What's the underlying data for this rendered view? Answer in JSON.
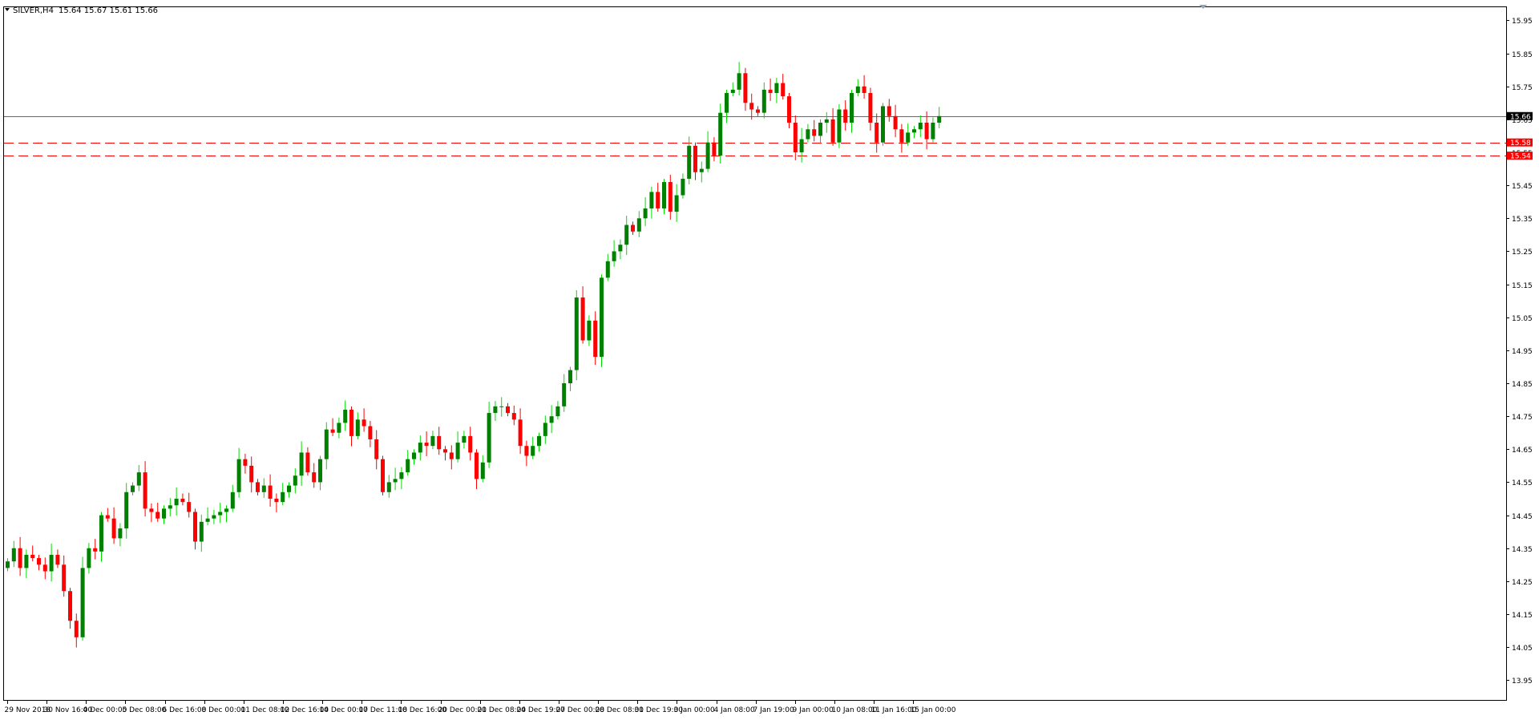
{
  "header": {
    "symbol": "SILVER,H4",
    "ohlc": "15.64 15.67 15.61 15.66"
  },
  "colors": {
    "bull": "#008000",
    "bull_wick": "#00dd00",
    "bear": "#ff0000",
    "level_line": "#ff0000",
    "current_line": "#5a6b80",
    "axis": "#000000",
    "label_text": "#ffffff"
  },
  "chart_data": {
    "type": "candlestick",
    "symbol": "SILVER",
    "timeframe": "H4",
    "ylim": [
      13.89,
      15.99
    ],
    "y_ticks": [
      13.95,
      14.05,
      14.15,
      14.25,
      14.35,
      14.45,
      14.55,
      14.65,
      14.75,
      14.85,
      14.95,
      15.05,
      15.15,
      15.25,
      15.35,
      15.45,
      15.55,
      15.65,
      15.75,
      15.85,
      15.95
    ],
    "x_labels": [
      "29 Nov 2018",
      "30 Nov 16:00",
      "4 Dec 00:00",
      "5 Dec 08:00",
      "6 Dec 16:00",
      "8 Dec 00:00",
      "11 Dec 08:00",
      "12 Dec 16:00",
      "14 Dec 00:00",
      "17 Dec 11:00",
      "18 Dec 16:00",
      "20 Dec 00:00",
      "21 Dec 08:00",
      "24 Dec 19:00",
      "27 Dec 00:00",
      "28 Dec 08:00",
      "31 Dec 19:00",
      "3 Jan 00:00",
      "4 Jan 08:00",
      "7 Jan 19:00",
      "9 Jan 00:00",
      "10 Jan 08:00",
      "11 Jan 16:00",
      "15 Jan 00:00"
    ],
    "price_labels": [
      {
        "value": 15.66,
        "text": "15.66",
        "kind": "current"
      },
      {
        "value": 15.58,
        "text": "15.58",
        "kind": "level"
      },
      {
        "value": 15.54,
        "text": "15.54",
        "kind": "level"
      }
    ],
    "horizontal_lines": [
      {
        "value": 15.66,
        "style": "solid"
      },
      {
        "value": 15.58,
        "style": "dashed"
      },
      {
        "value": 15.54,
        "style": "dashed"
      }
    ],
    "closes": [
      14.31,
      14.35,
      14.29,
      14.33,
      14.32,
      14.3,
      14.28,
      14.33,
      14.3,
      14.22,
      14.13,
      14.08,
      14.29,
      14.35,
      14.34,
      14.45,
      14.44,
      14.38,
      14.41,
      14.52,
      14.54,
      14.58,
      14.47,
      14.46,
      14.44,
      14.47,
      14.48,
      14.5,
      14.49,
      14.46,
      14.37,
      14.43,
      14.44,
      14.45,
      14.46,
      14.47,
      14.52,
      14.62,
      14.6,
      14.55,
      14.52,
      14.54,
      14.5,
      14.49,
      14.52,
      14.54,
      14.57,
      14.64,
      14.58,
      14.55,
      14.62,
      14.71,
      14.7,
      14.73,
      14.77,
      14.69,
      14.74,
      14.72,
      14.68,
      14.62,
      14.52,
      14.55,
      14.56,
      14.58,
      14.62,
      14.64,
      14.67,
      14.66,
      14.69,
      14.65,
      14.64,
      14.62,
      14.67,
      14.69,
      14.64,
      14.56,
      14.61,
      14.76,
      14.78,
      14.78,
      14.76,
      14.74,
      14.66,
      14.63,
      14.66,
      14.69,
      14.73,
      14.75,
      14.78,
      14.85,
      14.89,
      15.11,
      14.98,
      15.04,
      14.93,
      15.17,
      15.22,
      15.25,
      15.27,
      15.33,
      15.31,
      15.35,
      15.38,
      15.43,
      15.38,
      15.46,
      15.37,
      15.42,
      15.47,
      15.57,
      15.49,
      15.5,
      15.58,
      15.54,
      15.67,
      15.73,
      15.74,
      15.79,
      15.7,
      15.68,
      15.67,
      15.74,
      15.73,
      15.76,
      15.72,
      15.64,
      15.55,
      15.59,
      15.62,
      15.6,
      15.64,
      15.65,
      15.58,
      15.68,
      15.64,
      15.73,
      15.75,
      15.73,
      15.64,
      15.58,
      15.69,
      15.66,
      15.62,
      15.58,
      15.61,
      15.62,
      15.64,
      15.59,
      15.64,
      15.66
    ]
  }
}
